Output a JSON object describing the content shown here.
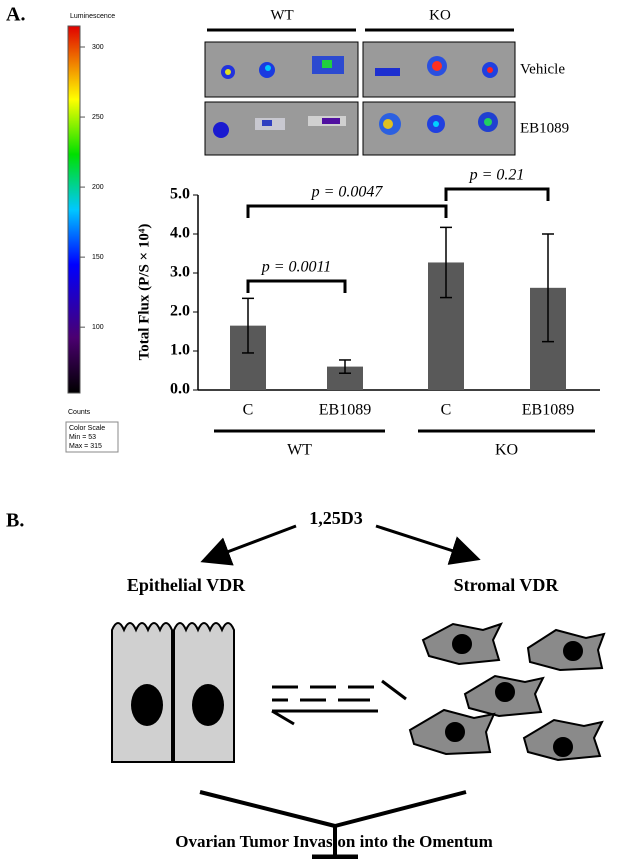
{
  "panel_a": {
    "label": "A.",
    "colorbar": {
      "title": "Luminescence",
      "lim": [
        53,
        315
      ],
      "ticks": [
        100,
        150,
        200,
        250,
        300
      ],
      "unit": "Counts",
      "scale_title": "Color Scale",
      "min_label": "Min = 53",
      "max_label": "Max = 315"
    },
    "images": {
      "columns": [
        "WT",
        "KO"
      ],
      "rows": [
        "Vehicle",
        "EB1089"
      ]
    }
  },
  "chart_data": {
    "type": "bar",
    "y_label": "Total Flux (P/S × 10⁴)",
    "categories": [
      "C",
      "EB1089",
      "C",
      "EB1089"
    ],
    "groups": [
      "WT",
      "KO"
    ],
    "values": [
      1.65,
      0.6,
      3.27,
      2.62
    ],
    "errors": [
      0.7,
      0.17,
      0.9,
      1.38
    ],
    "color": "#595959",
    "ylim": [
      0,
      5
    ],
    "yticks": [
      {
        "value": 0,
        "label": "0.0"
      },
      {
        "value": 1,
        "label": "1.0"
      },
      {
        "value": 2,
        "label": "2.0"
      },
      {
        "value": 3,
        "label": "3.0"
      },
      {
        "value": 4,
        "label": "4.0"
      },
      {
        "value": 5,
        "label": "5.0"
      }
    ],
    "annotations": [
      "p = 0.0011",
      "p = 0.0047",
      "p = 0.21"
    ]
  },
  "panel_b": {
    "label": "B.",
    "top": "1,25D3",
    "left": "Epithelial VDR",
    "right": "Stromal VDR",
    "bottom": "Ovarian Tumor Invasion into the Omentum"
  }
}
